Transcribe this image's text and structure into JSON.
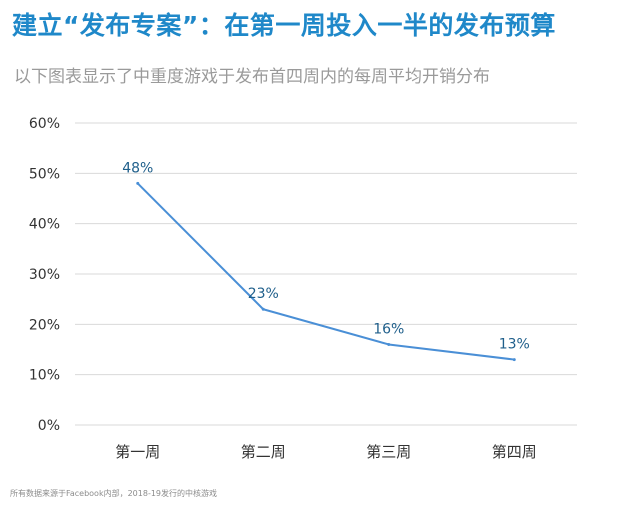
{
  "title": "建立“发布专案”：在第一周投入一半的发布预算",
  "subtitle": "以下图表显示了中重度游戏于发布首四周内的每周平均开销分布",
  "footnote": "所有数据来源于Facebook内部，2018-19发行的中核游戏",
  "colors": {
    "title": "#1f88c9",
    "line": "#4a8fd6",
    "data_label": "#1f5f8b",
    "grid": "#d9d9d9"
  },
  "chart_data": {
    "type": "line",
    "categories": [
      "第一周",
      "第二周",
      "第三周",
      "第四周"
    ],
    "series": [
      {
        "values": [
          48,
          23,
          16,
          13
        ]
      }
    ],
    "data_labels": [
      "48%",
      "23%",
      "16%",
      "13%"
    ],
    "y_ticks": [
      "0%",
      "10%",
      "20%",
      "30%",
      "40%",
      "50%",
      "60%"
    ],
    "ylim": [
      0,
      60
    ],
    "grid": true,
    "legend": "none",
    "xlabel": "",
    "ylabel": ""
  }
}
